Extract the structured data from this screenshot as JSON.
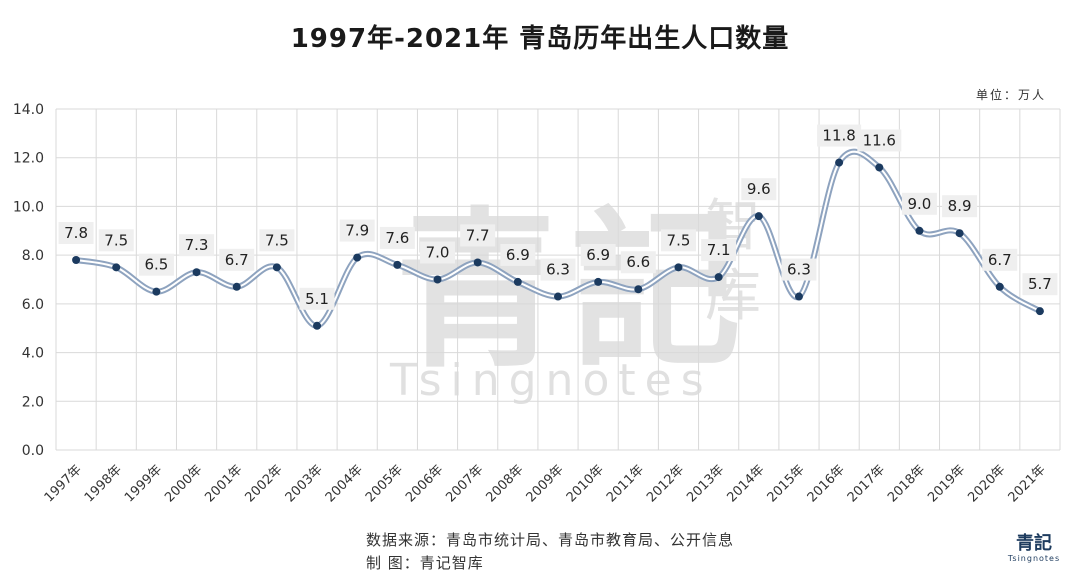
{
  "page": {
    "title": "1997年-2021年 青岛历年出生人口数量",
    "unit": "单位：万人"
  },
  "source": {
    "line1": "数据来源：青岛市统计局、青岛市教育局、公开信息",
    "line2": "制      图：青记智库"
  },
  "watermark": {
    "main": "青記",
    "side": "智库",
    "latin": "Tsingnotes"
  },
  "logo": {
    "main": "青記",
    "sub": "Tsingnotes"
  },
  "colors": {
    "line": "#8ea3bf",
    "marker": "#1b3a5f",
    "grid": "#d9d9d9",
    "label_bg": "#efefef"
  },
  "chart_data": {
    "type": "line",
    "title": "1997年-2021年 青岛历年出生人口数量",
    "xlabel": "",
    "ylabel": "",
    "ylim": [
      0,
      14
    ],
    "yticks": [
      "0.0",
      "2.0",
      "4.0",
      "6.0",
      "8.0",
      "10.0",
      "12.0",
      "14.0"
    ],
    "grid": true,
    "legend": "none",
    "categories": [
      "1997年",
      "1998年",
      "1999年",
      "2000年",
      "2001年",
      "2002年",
      "2003年",
      "2004年",
      "2005年",
      "2006年",
      "2007年",
      "2008年",
      "2009年",
      "2010年",
      "2011年",
      "2012年",
      "2013年",
      "2014年",
      "2015年",
      "2016年",
      "2017年",
      "2018年",
      "2019年",
      "2020年",
      "2021年"
    ],
    "values": [
      7.8,
      7.5,
      6.5,
      7.3,
      6.7,
      7.5,
      5.1,
      7.9,
      7.6,
      7.0,
      7.7,
      6.9,
      6.3,
      6.9,
      6.6,
      7.5,
      7.1,
      9.6,
      6.3,
      11.8,
      11.6,
      9.0,
      8.9,
      6.7,
      5.7
    ],
    "data_labels": [
      "7.8",
      "7.5",
      "6.5",
      "7.3",
      "6.7",
      "7.5",
      "5.1",
      "7.9",
      "7.6",
      "7.0",
      "7.7",
      "6.9",
      "6.3",
      "6.9",
      "6.6",
      "7.5",
      "7.1",
      "9.6",
      "6.3",
      "11.8",
      "11.6",
      "9.0",
      "8.9",
      "6.7",
      "5.7"
    ]
  }
}
